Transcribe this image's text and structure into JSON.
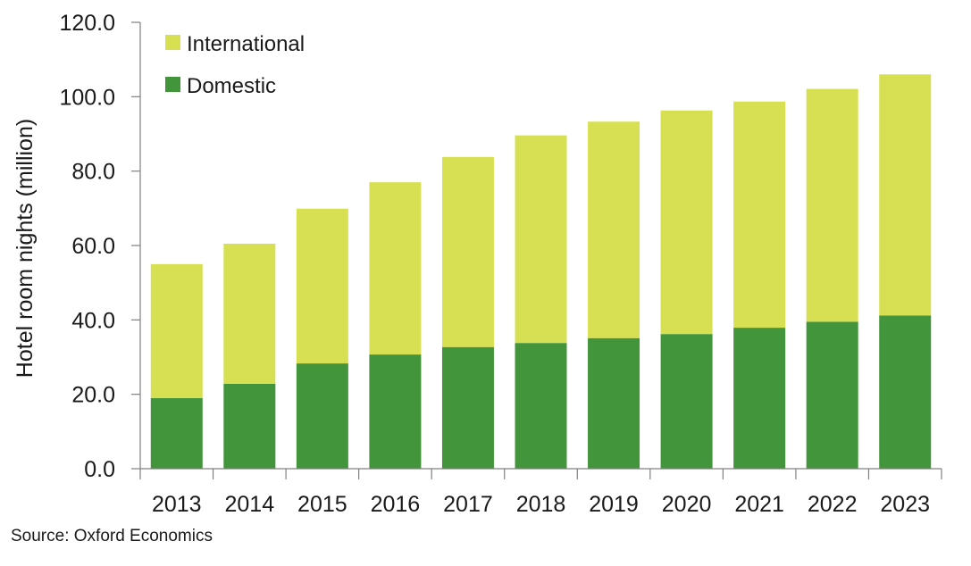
{
  "chart_data": {
    "type": "bar",
    "stacked": true,
    "categories": [
      "2013",
      "2014",
      "2015",
      "2016",
      "2017",
      "2018",
      "2019",
      "2020",
      "2021",
      "2022",
      "2023"
    ],
    "series": [
      {
        "name": "Domestic",
        "color": "#43953b",
        "values": [
          19.0,
          22.8,
          28.3,
          30.7,
          32.7,
          33.8,
          35.1,
          36.2,
          37.9,
          39.5,
          41.2
        ]
      },
      {
        "name": "International",
        "color": "#d6e052",
        "values": [
          36.0,
          37.7,
          41.6,
          46.3,
          51.1,
          55.8,
          58.2,
          60.1,
          60.8,
          62.6,
          64.8
        ]
      }
    ],
    "legend_order": [
      "International",
      "Domestic"
    ],
    "legend_position": "top-left",
    "ylabel": "Hotel room nights (million)",
    "xlabel": "",
    "title": "",
    "ylim": [
      0,
      120
    ],
    "yticks": [
      "0.0",
      "20.0",
      "40.0",
      "60.0",
      "80.0",
      "100.0",
      "120.0"
    ],
    "ytick_values": [
      0,
      20,
      40,
      60,
      80,
      100,
      120
    ],
    "grid": false
  },
  "source_note": "Source: Oxford Economics"
}
